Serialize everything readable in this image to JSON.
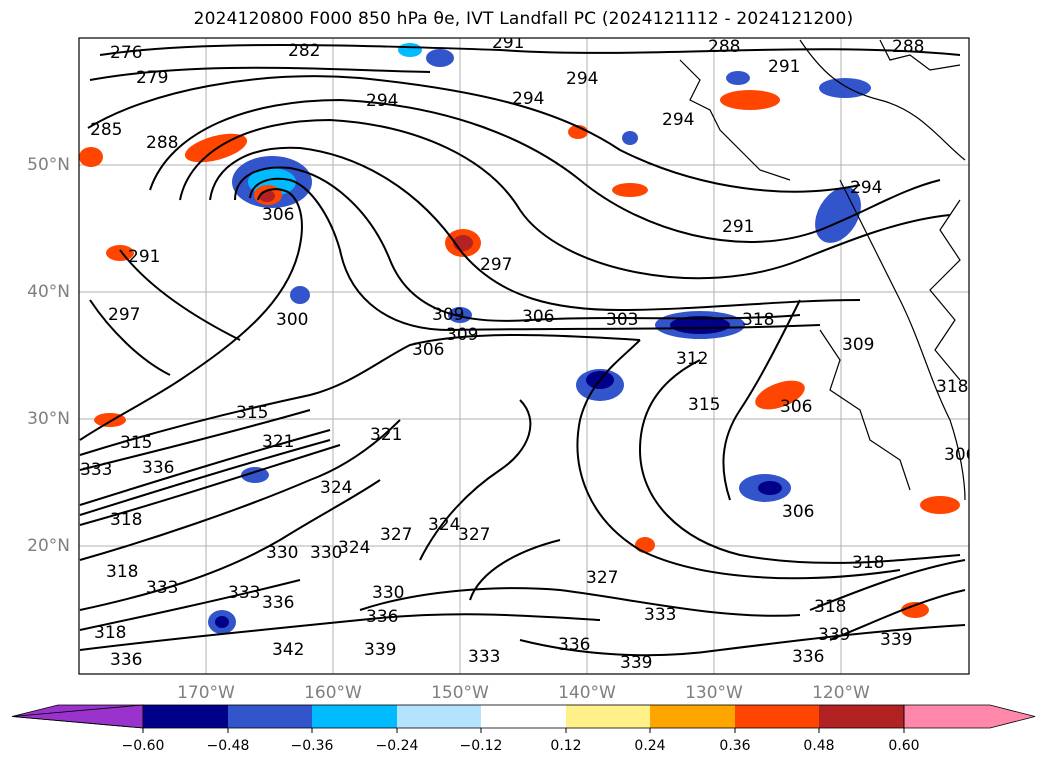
{
  "title": "2024120800 F000 850 hPa θe, IVT Landfall PC (2024121112 - 2024121200)",
  "map": {
    "projection": "lat-lon",
    "extent": {
      "lon_min": 180,
      "lon_max": 110,
      "lon_hemisphere": "W",
      "lat_min": 10,
      "lat_max": 60
    },
    "lat_labels": [
      "20°N",
      "30°N",
      "40°N",
      "50°N"
    ],
    "lon_labels": [
      "170°W",
      "160°W",
      "150°W",
      "140°W",
      "130°W",
      "120°W"
    ],
    "gridlines": true,
    "contour_field": "850 hPa θe",
    "contour_color": "#000000",
    "contour_labels": [
      "276",
      "279",
      "282",
      "285",
      "288",
      "291",
      "294",
      "297",
      "300",
      "303",
      "306",
      "309",
      "312",
      "315",
      "318",
      "321",
      "324",
      "327",
      "330",
      "333",
      "336",
      "339",
      "342"
    ]
  },
  "colorbar": {
    "orientation": "horizontal",
    "extend": "both",
    "colors": [
      "#9933cc",
      "#000088",
      "#3355cc",
      "#00bbff",
      "#b3e3ff",
      "#ffffff",
      "#fff08a",
      "#ffa500",
      "#ff4500",
      "#b22222",
      "#ff88aa"
    ],
    "ticks": [
      "−0.60",
      "−0.48",
      "−0.36",
      "−0.24",
      "−0.12",
      "0.12",
      "0.24",
      "0.36",
      "0.48",
      "0.60"
    ]
  }
}
